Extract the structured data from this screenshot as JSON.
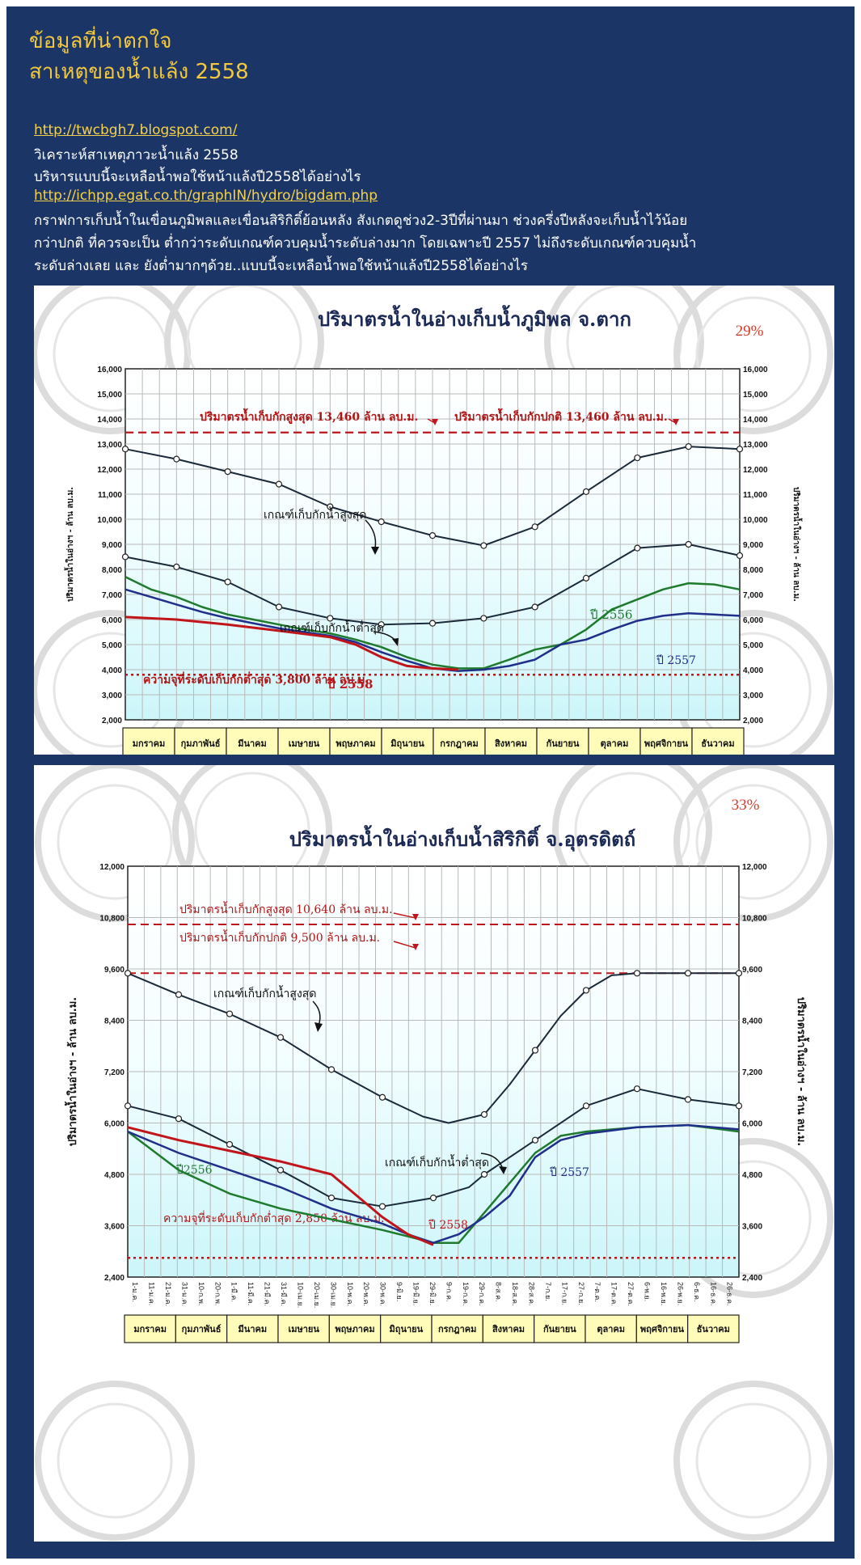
{
  "header": {
    "line1": "ข้อมูลที่น่าตกใจ",
    "line2": "สาเหตุของน้ำแล้ง  2558"
  },
  "body": {
    "link1": "http://twcbgh7.blogspot.com/",
    "text1": "วิเคราะห์สาเหตุภาวะน้ำแล้ง 2558",
    "text2": "บริหารแบบนี้จะเหลือน้ำพอใช้หน้าแล้งปี2558ได้อย่างไร",
    "link2": "http://ichpp.egat.co.th/graphIN/hydro/bigdam.php",
    "para": [
      "กราฟการเก็บน้ำในเขื่อนภูมิพลและเขื่อนสิริกิติ์ย้อนหลัง สังเกตดูช่วง2-3ปีที่ผ่านมา ช่วงครึ่งปีหลังจะเก็บน้ำไว้น้อย",
      "กว่าปกติ ที่ควรจะเป็น ต่ำกว่าระดับเกณฑ์ควบคุมน้ำระดับล่างมาก โดยเฉพาะปี 2557 ไม่ถึงระดับเกณฑ์ควบคุมน้ำ",
      "ระดับล่างเลย และ ยังต่ำมากๆด้วย..แบบนี้จะเหลือน้ำพอใช้หน้าแล้งปี2558ได้อย่างไร"
    ]
  },
  "colors": {
    "page_bg": "#1b3566",
    "title": "#f2c83c",
    "link": "#f5d14a",
    "red": "#c0161b",
    "green": "#1e7b2e",
    "blue": "#1f2f8a",
    "dark": "#1a2a3a"
  },
  "chart_data": [
    {
      "type": "line",
      "title": "ปริมาตรน้ำในอ่างเก็บน้ำภูมิพล จ.ตาก",
      "percent": "29%",
      "ylabel_left": "ปริมาตรน้ำในอ่างฯ - ล้าน ลบ.ม.",
      "ylabel_right": "ปริมาตรน้ำในอ่างฯ - ล้าน ลบ.ม.",
      "ylim": [
        2000,
        16000
      ],
      "yticks": [
        "2,000",
        "3,000",
        "4,000",
        "5,000",
        "6,000",
        "7,000",
        "8,000",
        "9,000",
        "10,000",
        "11,000",
        "12,000",
        "13,000",
        "14,000",
        "15,000",
        "16,000"
      ],
      "months": [
        "มกราคม",
        "กุมภาพันธ์",
        "มีนาคม",
        "เมษายน",
        "พฤษภาคม",
        "มิถุนายน",
        "กรกฎาคม",
        "สิงหาคม",
        "กันยายน",
        "ตุลาคม",
        "พฤศจิกายน",
        "ธันวาคม"
      ],
      "x_range": [
        0,
        12
      ],
      "ref_lines": [
        {
          "label": "ปริมาตรน้ำเก็บกักสูงสุด  13,460  ล้าน ลบ.ม.",
          "value": 13460
        },
        {
          "label": "ปริมาตรน้ำเก็บกักปกติ  13,460 ล้าน ลบ.ม.",
          "value": 13460
        },
        {
          "label": "ความจุที่ระดับเก็บกักต่ำสุด 3,800 ล้าน ลบ.ม.",
          "value": 3800
        }
      ],
      "labels": {
        "upper": "เกณฑ์เก็บกักน้ำสูงสุด",
        "lower": "เกณฑ์เก็บกักน้ำต่ำสุด",
        "y2556": "ปี 2556",
        "y2557": "ปี 2557",
        "y2558": "ปี 2558"
      },
      "series": [
        {
          "key": "upper",
          "x": [
            0,
            1,
            2,
            3,
            4,
            5,
            6,
            7,
            8,
            9,
            10,
            11,
            12
          ],
          "values": [
            12800,
            12400,
            11900,
            11400,
            10500,
            9900,
            9350,
            8950,
            9700,
            11100,
            12450,
            12900,
            12800
          ]
        },
        {
          "key": "lower",
          "x": [
            0,
            1,
            2,
            3,
            4,
            5,
            6,
            7,
            8,
            9,
            10,
            11,
            12
          ],
          "values": [
            8500,
            8100,
            7500,
            6500,
            6050,
            5800,
            5850,
            6050,
            6500,
            7650,
            8850,
            9000,
            8550
          ]
        },
        {
          "key": "y2556",
          "x": [
            0,
            0.5,
            1,
            1.5,
            2,
            2.5,
            3,
            3.5,
            4,
            4.5,
            5,
            5.5,
            6,
            6.5,
            7,
            7.5,
            8,
            8.5,
            9,
            9.5,
            10,
            10.5,
            11,
            11.5,
            12
          ],
          "values": [
            7700,
            7200,
            6900,
            6500,
            6200,
            6000,
            5800,
            5600,
            5450,
            5200,
            4900,
            4500,
            4200,
            4050,
            4050,
            4400,
            4800,
            5000,
            5600,
            6400,
            6800,
            7200,
            7450,
            7400,
            7200
          ]
        },
        {
          "key": "y2557",
          "x": [
            0,
            0.5,
            1,
            1.5,
            2,
            2.5,
            3,
            3.5,
            4,
            4.5,
            5,
            5.5,
            6,
            6.5,
            7,
            7.5,
            8,
            8.5,
            9,
            9.5,
            10,
            10.5,
            11,
            11.5,
            12
          ],
          "values": [
            7200,
            6900,
            6600,
            6300,
            6050,
            5850,
            5650,
            5500,
            5350,
            5100,
            4700,
            4350,
            4050,
            3950,
            4000,
            4150,
            4400,
            5000,
            5200,
            5600,
            5950,
            6150,
            6250,
            6200,
            6150
          ]
        },
        {
          "key": "y2558",
          "x": [
            0,
            1,
            2,
            3,
            4,
            4.5,
            5,
            5.5,
            6,
            6.5
          ],
          "values": [
            6100,
            6000,
            5800,
            5550,
            5300,
            5000,
            4500,
            4150,
            4050,
            4000
          ]
        }
      ]
    },
    {
      "type": "line",
      "title": "ปริมาตรน้ำในอ่างเก็บน้ำสิริกิติ์ จ.อุตรดิตถ์",
      "percent": "33%",
      "ylabel_left": "ปริมาตรน้ำในอ่างฯ - ล้าน ลบ.ม.",
      "ylabel_right": "ปริมาตรน้ำในอ่างฯ - ล้าน ลบ.ม.",
      "ylim": [
        2400,
        12000
      ],
      "yticks": [
        "2,400",
        "3,600",
        "4,800",
        "6,000",
        "7,200",
        "8,400",
        "9,600",
        "10,800",
        "12,000"
      ],
      "months": [
        "มกราคม",
        "กุมภาพันธ์",
        "มีนาคม",
        "เมษายน",
        "พฤษภาคม",
        "มิถุนายน",
        "กรกฎาคม",
        "สิงหาคม",
        "กันยายน",
        "ตุลาคม",
        "พฤศจิกายน",
        "ธันวาคม"
      ],
      "date_ticks": [
        "1-ม.ค.",
        "11-ม.ค.",
        "21-ม.ค.",
        "31-ม.ค.",
        "10-ก.พ.",
        "20-ก.พ.",
        "1-มี.ค.",
        "11-มี.ค.",
        "21-มี.ค.",
        "31-มี.ค.",
        "10-เม.ย.",
        "20-เม.ย.",
        "30-เม.ย.",
        "10-พ.ค.",
        "20-พ.ค.",
        "30-พ.ค.",
        "9-มิ.ย.",
        "19-มิ.ย.",
        "29-มิ.ย.",
        "9-ก.ค.",
        "19-ก.ค.",
        "29-ก.ค.",
        "8-ส.ค.",
        "18-ส.ค.",
        "28-ส.ค.",
        "7-ก.ย.",
        "17-ก.ย.",
        "27-ก.ย.",
        "7-ต.ค.",
        "17-ต.ค.",
        "27-ต.ค.",
        "6-พ.ย.",
        "16-พ.ย.",
        "26-พ.ย.",
        "6-ธ.ค.",
        "16-ธ.ค.",
        "26-ธ.ค."
      ],
      "x_range": [
        0,
        12
      ],
      "ref_lines": [
        {
          "label": "ปริมาตรน้ำเก็บกักสูงสุด  10,640 ล้าน ลบ.ม.",
          "value": 10640
        },
        {
          "label": "ปริมาตรน้ำเก็บกักปกติ 9,500 ล้าน ลบ.ม.",
          "value": 9500
        },
        {
          "label": "ความจุที่ระดับเก็บกักต่ำสุด 2,850 ล้าน ลบ.ม.",
          "value": 2850
        }
      ],
      "labels": {
        "upper": "เกณฑ์เก็บกักน้ำสูงสุด",
        "lower": "เกณฑ์เก็บกักน้ำต่ำสุด",
        "y2556": "ปี2556",
        "y2557": "ปี 2557",
        "y2558": "ปี 2558"
      },
      "series": [
        {
          "key": "upper",
          "x": [
            0,
            1,
            2,
            3,
            4,
            5,
            5.8,
            6.3,
            7,
            7.5,
            8,
            8.5,
            9,
            9.5,
            10,
            11,
            12
          ],
          "values": [
            9500,
            9000,
            8550,
            8000,
            7250,
            6600,
            6150,
            6000,
            6200,
            6900,
            7700,
            8500,
            9100,
            9450,
            9500,
            9500,
            9500
          ]
        },
        {
          "key": "lower",
          "x": [
            0,
            1,
            2,
            3,
            4,
            5,
            6,
            6.7,
            7,
            7.5,
            8,
            9,
            10,
            11,
            12
          ],
          "values": [
            6400,
            6100,
            5500,
            4900,
            4250,
            4050,
            4250,
            4500,
            4800,
            5200,
            5600,
            6400,
            6800,
            6550,
            6400
          ]
        },
        {
          "key": "y2556",
          "x": [
            0,
            1,
            2,
            3,
            4,
            5,
            5.5,
            6,
            6.5,
            7,
            7.5,
            8,
            8.5,
            9,
            10,
            11,
            12
          ],
          "values": [
            5800,
            4900,
            4350,
            4000,
            3750,
            3500,
            3350,
            3200,
            3200,
            3900,
            4600,
            5300,
            5700,
            5800,
            5900,
            5950,
            5800
          ]
        },
        {
          "key": "y2557",
          "x": [
            0,
            1,
            2,
            3,
            4,
            5,
            5.5,
            6,
            6.5,
            7,
            7.5,
            8,
            8.5,
            9,
            10,
            11,
            12
          ],
          "values": [
            5800,
            5300,
            4900,
            4500,
            4000,
            3650,
            3400,
            3200,
            3400,
            3800,
            4300,
            5200,
            5600,
            5750,
            5900,
            5950,
            5850
          ]
        },
        {
          "key": "y2558",
          "x": [
            0,
            1,
            2,
            3,
            4,
            4.5,
            5,
            5.5,
            6
          ],
          "values": [
            5900,
            5600,
            5350,
            5100,
            4800,
            4300,
            3800,
            3400,
            3150
          ]
        }
      ]
    }
  ]
}
